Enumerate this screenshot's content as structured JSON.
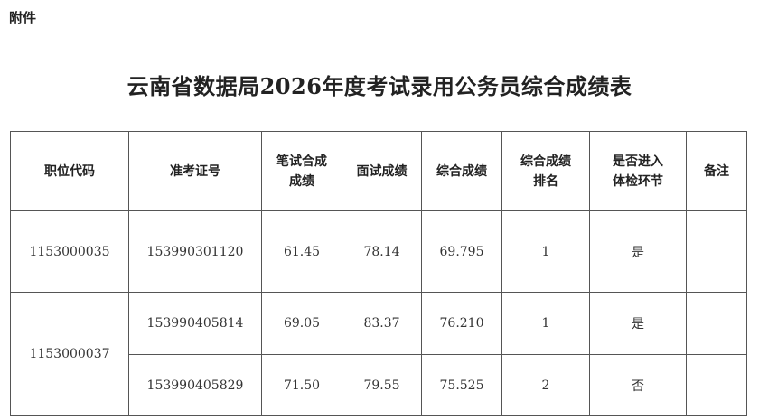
{
  "attachment_label": "附件",
  "title": "云南省数据局2026年度考试录用公务员综合成绩表",
  "table": {
    "headers": [
      [
        "职位代码"
      ],
      [
        "准考证号"
      ],
      [
        "笔试合成",
        "成绩"
      ],
      [
        "面试成绩"
      ],
      [
        "综合成绩"
      ],
      [
        "综合成绩",
        "排名"
      ],
      [
        "是否进入",
        "体检环节"
      ],
      [
        "备注"
      ]
    ],
    "groups": [
      {
        "position_code": "1153000035",
        "rows": [
          {
            "exam_id": "153990301120",
            "written": "61.45",
            "interview": "78.14",
            "total": "69.795",
            "rank": "1",
            "physical_exam": "是",
            "note": ""
          }
        ]
      },
      {
        "position_code": "1153000037",
        "rows": [
          {
            "exam_id": "153990405814",
            "written": "69.05",
            "interview": "83.37",
            "total": "76.210",
            "rank": "1",
            "physical_exam": "是",
            "note": ""
          },
          {
            "exam_id": "153990405829",
            "written": "71.50",
            "interview": "79.55",
            "total": "75.525",
            "rank": "2",
            "physical_exam": "否",
            "note": ""
          }
        ]
      }
    ]
  }
}
